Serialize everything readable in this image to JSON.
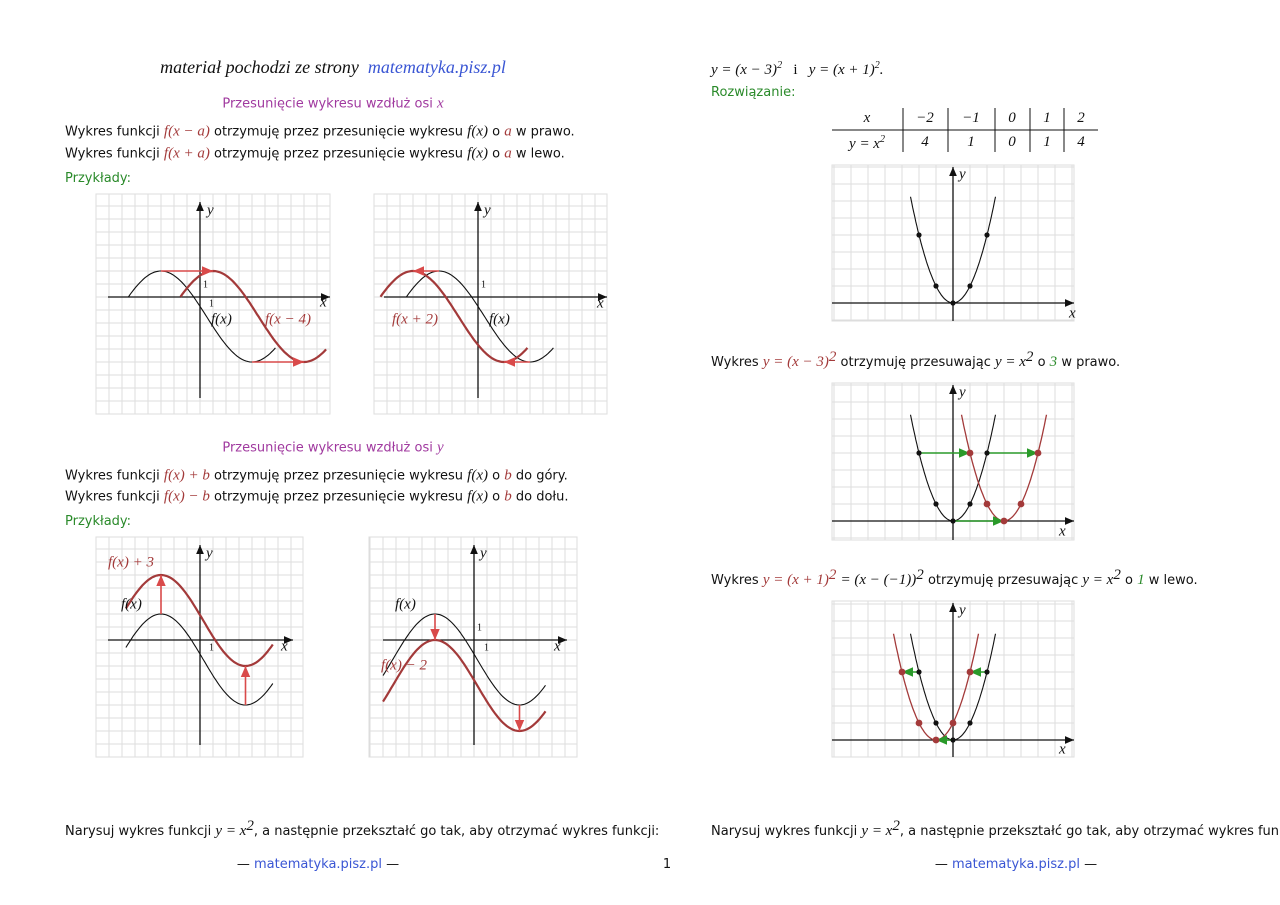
{
  "header": {
    "text": "materiał pochodzi ze strony",
    "link": "matematyka.pisz.pl"
  },
  "shift_x": {
    "title": "Przesunięcie wykresu wzdłuż osi",
    "axis": "x",
    "line1": [
      "Wykres funkcji",
      "f(x − a)",
      "otrzymuję przez przesunięcie wykresu",
      "f(x)",
      "o",
      "a",
      "w prawo."
    ],
    "line2": [
      "Wykres funkcji",
      "f(x + a)",
      "otrzymuję przez przesunięcie wykresu",
      "f(x)",
      "o",
      "a",
      "w lewo."
    ],
    "examples": "Przykłady:",
    "graph1": {
      "y": "y",
      "x": "x",
      "one_y": "1",
      "one_x": "1",
      "f": "f(x)",
      "g": "f(x − 4)"
    },
    "graph2": {
      "y": "y",
      "x": "x",
      "one_y": "1",
      "f": "f(x)",
      "g": "f(x + 2)"
    }
  },
  "shift_y": {
    "title": "Przesunięcie wykresu wzdłuż osi",
    "axis": "y",
    "line1": [
      "Wykres funkcji",
      "f(x) + b",
      "otrzymuję przez przesunięcie wykresu",
      "f(x)",
      "o",
      "b",
      "do góry."
    ],
    "line2": [
      "Wykres funkcji",
      "f(x) − b",
      "otrzymuję przez przesunięcie wykresu",
      "f(x)",
      "o",
      "b",
      "do dołu."
    ],
    "examples": "Przykłady:",
    "graph3": {
      "y": "y",
      "x": "x",
      "one_x": "1",
      "f": "f(x)",
      "g": "f(x) + 3"
    },
    "graph4": {
      "y": "y",
      "x": "x",
      "one_y": "1",
      "one_x": "1",
      "f": "f(x)",
      "g": "f(x) − 2"
    }
  },
  "exercise": [
    "Narysuj wykres funkcji",
    "y = x",
    "2",
    ", a następnie przekształć go tak, aby otrzymać wykres funkcji:"
  ],
  "footer": {
    "dash": "—",
    "link": "matematyka.pisz.pl",
    "page": "1"
  },
  "task": {
    "f1": "y = (x − 3)",
    "exp": "2",
    "and": "i",
    "f2": "y = (x + 1)",
    "end": "."
  },
  "solution": "Rozwiązanie:",
  "table": {
    "header": [
      "x",
      "−2",
      "−1",
      "0",
      "1",
      "2"
    ],
    "row_label": [
      "y = x",
      "2"
    ],
    "row": [
      "4",
      "1",
      "0",
      "1",
      "4"
    ]
  },
  "graph5": {
    "y": "y",
    "x": "x"
  },
  "shift_right": [
    "Wykres",
    "y = (x − 3)",
    "2",
    "otrzymuję przesuwając",
    "y = x",
    "2",
    "o",
    "3",
    "w prawo."
  ],
  "graph6": {
    "y": "y",
    "x": "x"
  },
  "shift_left": [
    "Wykres",
    "y = (x + 1)",
    "2",
    "= (x − (−1))",
    "2",
    "otrzymuję przesuwając",
    "y = x",
    "2",
    "o",
    "1",
    "w lewo."
  ],
  "graph7": {
    "y": "y",
    "x": "x"
  }
}
